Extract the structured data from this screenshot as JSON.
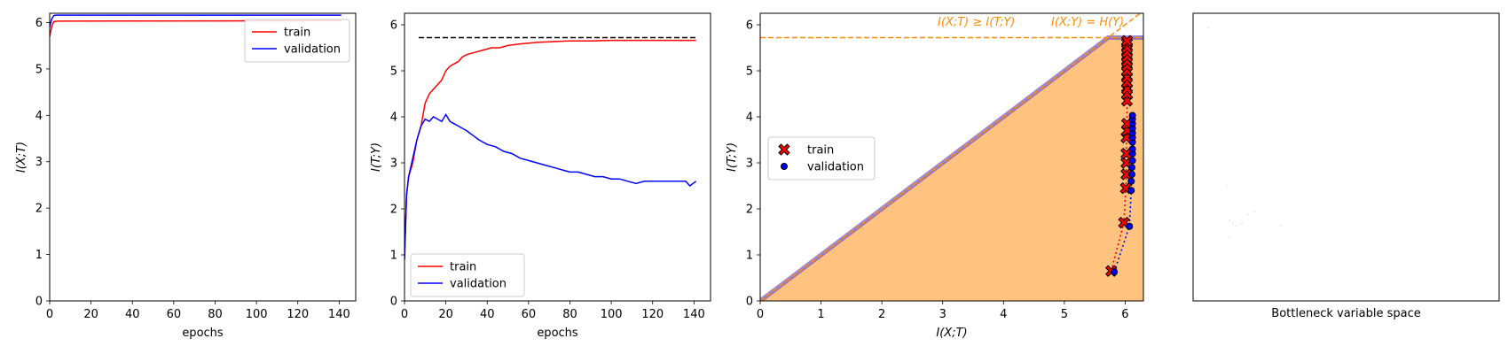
{
  "chart_data": [
    {
      "type": "line",
      "xlabel": "epochs",
      "ylabel": "I(X;T)",
      "xlim": [
        0,
        148
      ],
      "ylim": [
        0,
        6.2
      ],
      "xticks": [
        "0",
        "20",
        "40",
        "60",
        "80",
        "100",
        "120",
        "140"
      ],
      "yticks": [
        "0",
        "1",
        "2",
        "3",
        "4",
        "5",
        "6"
      ],
      "legend_position": "top-right",
      "series": [
        {
          "name": "train",
          "color": "#ff0000",
          "x": [
            0,
            1,
            2,
            4,
            141
          ],
          "y": [
            5.7,
            5.92,
            6.02,
            6.03,
            6.04
          ]
        },
        {
          "name": "validation",
          "color": "#0000ff",
          "x": [
            0,
            1,
            2,
            3,
            141
          ],
          "y": [
            5.9,
            6.08,
            6.15,
            6.16,
            6.16
          ]
        }
      ]
    },
    {
      "type": "line",
      "xlabel": "epochs",
      "ylabel": "I(T;Y)",
      "xlim": [
        0,
        148
      ],
      "ylim": [
        0,
        6.25
      ],
      "xticks": [
        "0",
        "20",
        "40",
        "60",
        "80",
        "100",
        "120",
        "140"
      ],
      "yticks": [
        "0",
        "1",
        "2",
        "3",
        "4",
        "5",
        "6"
      ],
      "legend_position": "bottom-left",
      "reference_line": {
        "y": 5.72,
        "color": "#000000",
        "style": "dashed"
      },
      "series": [
        {
          "name": "train",
          "color": "#ff0000",
          "x": [
            0,
            1,
            2,
            4,
            6,
            8,
            10,
            12,
            14,
            16,
            18,
            20,
            22,
            24,
            26,
            28,
            30,
            34,
            38,
            42,
            46,
            50,
            55,
            60,
            65,
            70,
            75,
            80,
            90,
            100,
            110,
            120,
            130,
            141
          ],
          "y": [
            0.9,
            2.3,
            2.7,
            3.0,
            3.5,
            3.8,
            4.3,
            4.5,
            4.6,
            4.7,
            4.8,
            5.0,
            5.1,
            5.15,
            5.2,
            5.3,
            5.35,
            5.4,
            5.45,
            5.5,
            5.5,
            5.55,
            5.58,
            5.6,
            5.62,
            5.63,
            5.64,
            5.65,
            5.65,
            5.66,
            5.66,
            5.66,
            5.66,
            5.66
          ]
        },
        {
          "name": "validation",
          "color": "#0000ff",
          "x": [
            0,
            1,
            2,
            4,
            6,
            8,
            10,
            12,
            14,
            16,
            18,
            20,
            22,
            24,
            26,
            28,
            30,
            33,
            36,
            40,
            44,
            48,
            52,
            56,
            60,
            64,
            68,
            72,
            76,
            80,
            84,
            88,
            92,
            96,
            100,
            104,
            108,
            112,
            116,
            120,
            124,
            128,
            132,
            136,
            138,
            141
          ],
          "y": [
            0.9,
            2.3,
            2.7,
            3.1,
            3.5,
            3.8,
            3.95,
            3.9,
            4.0,
            3.95,
            3.9,
            4.05,
            3.9,
            3.85,
            3.8,
            3.75,
            3.7,
            3.6,
            3.5,
            3.4,
            3.35,
            3.25,
            3.2,
            3.1,
            3.05,
            3.0,
            2.95,
            2.9,
            2.85,
            2.8,
            2.8,
            2.75,
            2.7,
            2.7,
            2.65,
            2.65,
            2.6,
            2.55,
            2.6,
            2.6,
            2.6,
            2.6,
            2.6,
            2.6,
            2.5,
            2.6
          ]
        }
      ]
    },
    {
      "type": "scatter",
      "xlabel": "I(X;T)",
      "ylabel": "I(T;Y)",
      "xlim": [
        0,
        6.3
      ],
      "ylim": [
        0,
        6.25
      ],
      "xticks": [
        "0",
        "1",
        "2",
        "3",
        "4",
        "5",
        "6"
      ],
      "yticks": [
        "0",
        "1",
        "2",
        "3",
        "4",
        "5",
        "6"
      ],
      "legend_position": "center-left",
      "bound_level": 5.72,
      "region_color": "#ffc37f",
      "bound_color": "#7b5fc8",
      "annotation_color": "#ff8c00",
      "annotations": [
        "I(X;T) ≥ I(T;Y)",
        "I(X;Y) = H(Y)"
      ],
      "series": [
        {
          "name": "train",
          "marker": "X",
          "color": "#ff0000",
          "x": [
            5.77,
            5.98,
            6.01,
            6.02,
            6.02,
            6.02,
            6.02,
            6.03,
            6.03,
            6.03,
            6.03,
            6.03,
            6.03,
            6.03,
            6.03,
            6.03,
            6.03,
            6.03,
            6.03,
            6.03,
            6.03,
            6.03
          ],
          "y": [
            0.65,
            1.7,
            2.45,
            2.75,
            3.0,
            3.2,
            3.55,
            3.7,
            3.85,
            4.35,
            4.5,
            4.6,
            4.75,
            4.85,
            5.0,
            5.1,
            5.2,
            5.3,
            5.4,
            5.5,
            5.6,
            5.65
          ]
        },
        {
          "name": "validation",
          "marker": "o",
          "color": "#0000ff",
          "x": [
            5.82,
            6.07,
            6.1,
            6.1,
            6.11,
            6.11,
            6.12,
            6.12,
            6.12,
            6.12,
            6.12,
            6.12,
            6.12,
            6.12,
            6.12,
            6.12
          ],
          "y": [
            0.63,
            1.62,
            2.4,
            2.6,
            2.75,
            2.9,
            3.05,
            3.2,
            3.3,
            3.45,
            3.55,
            3.65,
            3.75,
            3.85,
            3.95,
            4.03
          ]
        }
      ]
    },
    {
      "type": "scatter",
      "xlabel": "Bottleneck variable space",
      "ylabel": "",
      "series": []
    }
  ]
}
